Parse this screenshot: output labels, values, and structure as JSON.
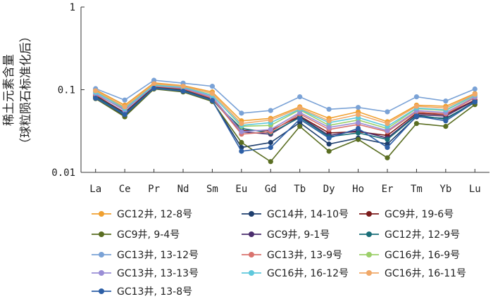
{
  "chart_data": {
    "type": "line",
    "title": "",
    "ylabel_line1": "稀土元素含量",
    "ylabel_line2": "（球粒陨石标准化后）",
    "yscale": "log",
    "ylim": [
      0.01,
      1
    ],
    "yticks": [
      "1",
      "0.1",
      "0.01"
    ],
    "categories": [
      "La",
      "Ce",
      "Pr",
      "Nd",
      "Sm",
      "Eu",
      "Gd",
      "Tb",
      "Dy",
      "Ho",
      "Er",
      "Tm",
      "Yb",
      "Lu"
    ],
    "legend_position": "bottom",
    "series": [
      {
        "name": "GC12井, 12-8号",
        "color": "#f0a030",
        "values": [
          0.1,
          0.065,
          0.121,
          0.112,
          0.094,
          0.042,
          0.045,
          0.062,
          0.045,
          0.054,
          0.041,
          0.065,
          0.063,
          0.09
        ]
      },
      {
        "name": "GC14井, 14-10号",
        "color": "#1f3f6e",
        "values": [
          0.08,
          0.048,
          0.103,
          0.097,
          0.073,
          0.02,
          0.023,
          0.04,
          0.022,
          0.026,
          0.022,
          0.047,
          0.045,
          0.07
        ]
      },
      {
        "name": "GC9井, 19-6号",
        "color": "#7b1a1a",
        "values": [
          0.085,
          0.053,
          0.108,
          0.101,
          0.078,
          0.032,
          0.032,
          0.048,
          0.03,
          0.031,
          0.028,
          0.052,
          0.05,
          0.075
        ]
      },
      {
        "name": "GC9井, 9-4号",
        "color": "#5a6e22",
        "values": [
          0.078,
          0.047,
          0.102,
          0.094,
          0.072,
          0.023,
          0.0135,
          0.036,
          0.018,
          0.025,
          0.015,
          0.039,
          0.036,
          0.066
        ]
      },
      {
        "name": "GC9井, 9-1号",
        "color": "#4b2e6e",
        "values": [
          0.083,
          0.052,
          0.106,
          0.099,
          0.076,
          0.031,
          0.029,
          0.047,
          0.028,
          0.032,
          0.026,
          0.05,
          0.048,
          0.074
        ]
      },
      {
        "name": "GC12井, 12-9号",
        "color": "#1a6e78",
        "values": [
          0.082,
          0.051,
          0.105,
          0.098,
          0.075,
          0.034,
          0.03,
          0.046,
          0.027,
          0.03,
          0.025,
          0.049,
          0.044,
          0.072
        ]
      },
      {
        "name": "GC13井, 13-12号",
        "color": "#7aa2d6",
        "values": [
          0.103,
          0.075,
          0.13,
          0.12,
          0.11,
          0.052,
          0.056,
          0.082,
          0.058,
          0.061,
          0.054,
          0.082,
          0.073,
          0.102
        ]
      },
      {
        "name": "GC13井, 13-9号",
        "color": "#d9736e",
        "values": [
          0.087,
          0.058,
          0.11,
          0.103,
          0.079,
          0.029,
          0.031,
          0.051,
          0.033,
          0.038,
          0.031,
          0.054,
          0.051,
          0.08
        ]
      },
      {
        "name": "GC16井, 16-9号",
        "color": "#9ccf6a",
        "values": [
          0.095,
          0.06,
          0.115,
          0.108,
          0.086,
          0.036,
          0.037,
          0.057,
          0.037,
          0.043,
          0.034,
          0.059,
          0.056,
          0.085
        ]
      },
      {
        "name": "GC13井, 13-13号",
        "color": "#9a8ed6",
        "values": [
          0.09,
          0.056,
          0.112,
          0.105,
          0.082,
          0.031,
          0.033,
          0.053,
          0.035,
          0.04,
          0.032,
          0.056,
          0.053,
          0.082
        ]
      },
      {
        "name": "GC16井, 16-12号",
        "color": "#5ec8dc",
        "values": [
          0.093,
          0.059,
          0.113,
          0.107,
          0.085,
          0.037,
          0.04,
          0.058,
          0.04,
          0.046,
          0.036,
          0.06,
          0.057,
          0.086
        ]
      },
      {
        "name": "GC16井, 16-11号",
        "color": "#f0a868",
        "values": [
          0.097,
          0.062,
          0.118,
          0.11,
          0.09,
          0.039,
          0.043,
          0.06,
          0.042,
          0.05,
          0.039,
          0.063,
          0.06,
          0.088
        ]
      },
      {
        "name": "GC13井, 13-8号",
        "color": "#2d5fa6",
        "values": [
          0.079,
          0.05,
          0.104,
          0.096,
          0.074,
          0.018,
          0.02,
          0.044,
          0.026,
          0.034,
          0.02,
          0.048,
          0.042,
          0.071
        ]
      }
    ]
  }
}
